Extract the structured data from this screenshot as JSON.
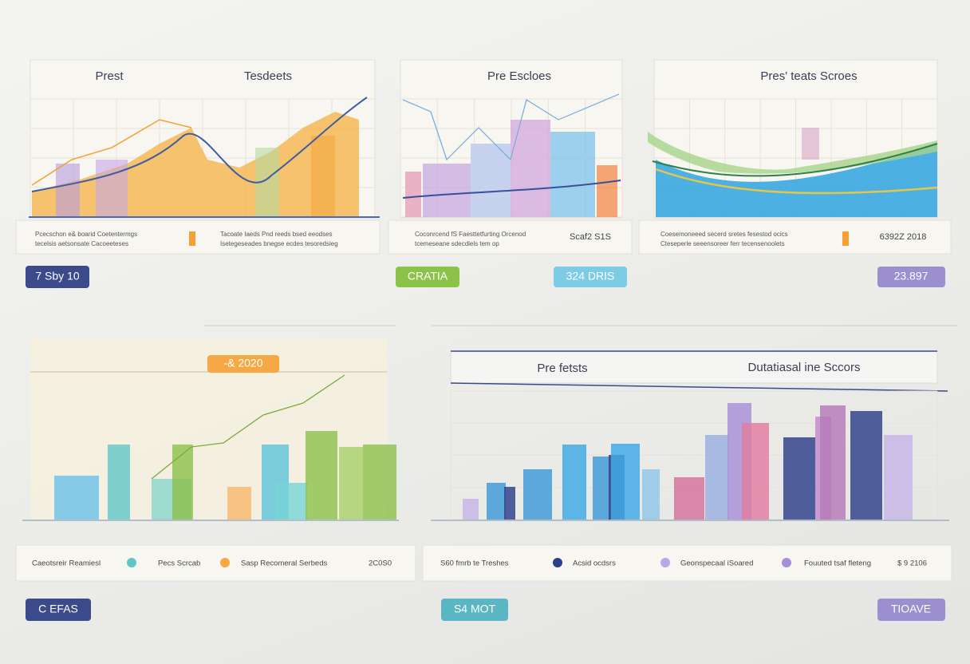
{
  "panel1": {
    "title_left": "Prest",
    "title_right": "Tesdeets",
    "footer_left": [
      "Pcecschon e& boarid Coetentermgs",
      "tecelsis aetsonsate Cacoeeteses"
    ],
    "footer_right": [
      "Tacoate Iaeds Pnd reeds bsed eeodses",
      "Isetegeseades bnegse ecdes tesoredsieg"
    ],
    "badge": "7 Sby 10"
  },
  "panel2": {
    "title": "Pre Escloes",
    "footer_left": [
      "Coconrcend fS Faesttetfurting Orcenod",
      "tcemeseane sdecdiels tem op"
    ],
    "footer_value": "Scaf2 S1S",
    "badges": [
      "CRATIA",
      "324 DRIS"
    ]
  },
  "panel3": {
    "title": "Pres' teats Scroes",
    "footer_left": [
      "Coesemoneeed secerd sretes fesestod ocics",
      "Cteseperle seeensoreer ferr tecensenoolets"
    ],
    "footer_value": "6392Z 2018",
    "badge": "23.897"
  },
  "panel4": {
    "tag": "-& 2020",
    "legend": [
      "Caeotsreir Reamiesl",
      "Pecs Scrcab",
      "Sasp Recomeral Serbeds",
      "2C0S0"
    ],
    "badge": "C EFAS"
  },
  "panel5": {
    "title_left": "Pre fetsts",
    "title_right": "Dutatiasal ine Sccors",
    "legend": [
      "S60 fmrb te Treshes",
      "Acsid ocdsrs",
      "Geonspecaal iSoared",
      "Fouuted tsaf fleteng",
      "$ 9 2106"
    ],
    "badges": [
      "S4 MOT",
      "TIOAVE"
    ]
  }
}
